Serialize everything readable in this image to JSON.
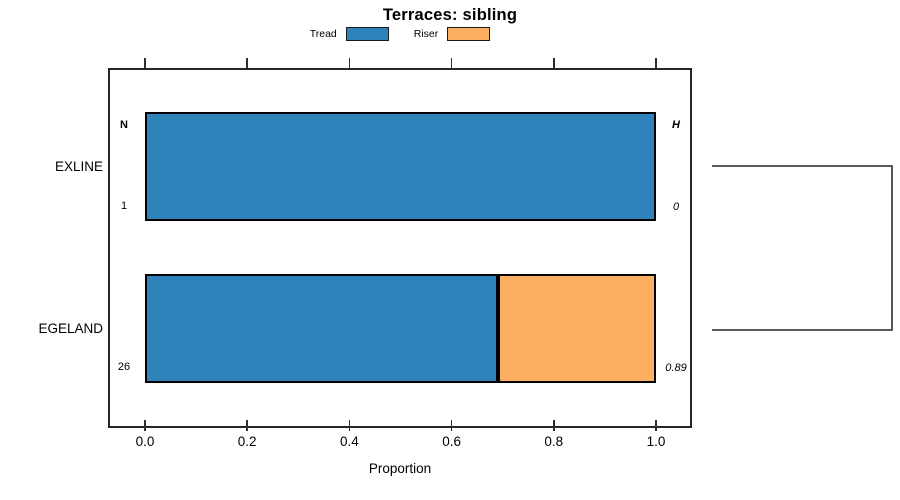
{
  "title": "Terraces: sibling",
  "legend": {
    "items": [
      {
        "label": "Tread",
        "color": "#2D83BA"
      },
      {
        "label": "Riser",
        "color": "#FCAE61"
      }
    ]
  },
  "axis": {
    "xlabel": "Proportion",
    "tick_labels": [
      "0.0",
      "0.2",
      "0.4",
      "0.6",
      "0.8",
      "1.0"
    ]
  },
  "table": {
    "n_header": "N",
    "h_header": "H"
  },
  "rows": [
    {
      "label": "EXLINE",
      "n": "1",
      "h": "0"
    },
    {
      "label": "EGELAND",
      "n": "26",
      "h": "0.89"
    }
  ],
  "chart_data": {
    "type": "bar",
    "orientation": "horizontal",
    "stacked": true,
    "title": "Terraces: sibling",
    "xlabel": "Proportion",
    "xlim": [
      0,
      1
    ],
    "xticks": [
      0,
      0.2,
      0.4,
      0.6,
      0.8,
      1.0
    ],
    "grid": false,
    "legend_position": "top",
    "categories": [
      "EXLINE",
      "EGELAND"
    ],
    "series": [
      {
        "name": "Tread",
        "color": "#2D83BA",
        "values": [
          1.0,
          0.69
        ]
      },
      {
        "name": "Riser",
        "color": "#FCAE61",
        "values": [
          0.0,
          0.31
        ]
      }
    ],
    "row_annotations": [
      {
        "category": "EXLINE",
        "N": 1,
        "H": 0
      },
      {
        "category": "EGELAND",
        "N": 26,
        "H": 0.89
      }
    ],
    "right_panel": "dendrogram bracket joining EXLINE and EGELAND"
  }
}
